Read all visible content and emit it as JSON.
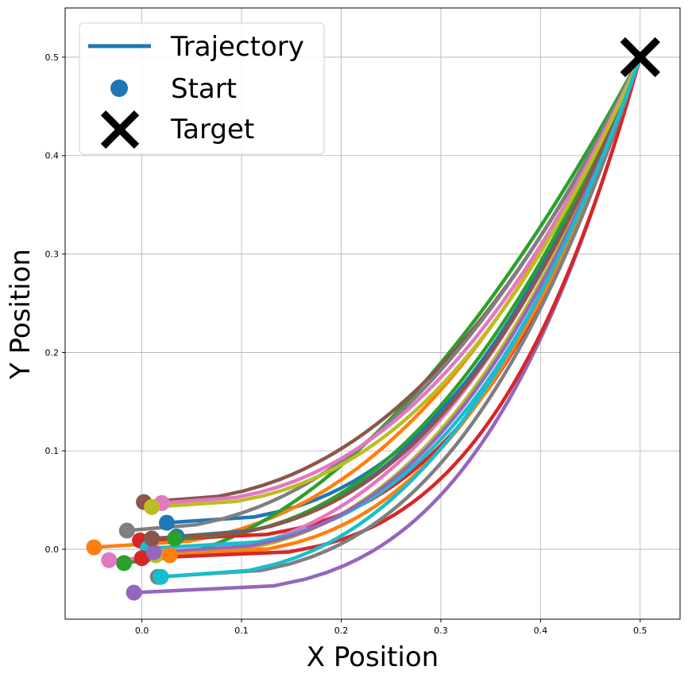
{
  "chart_data": {
    "type": "line",
    "title": "",
    "xlabel": "X Position",
    "ylabel": "Y Position",
    "xlim": [
      -0.077,
      0.54
    ],
    "ylim": [
      -0.071,
      0.55
    ],
    "xticks": [
      0.0,
      0.1,
      0.2,
      0.3,
      0.4,
      0.5
    ],
    "yticks": [
      0.0,
      0.1,
      0.2,
      0.3,
      0.4,
      0.5
    ],
    "xtick_labels": [
      "0.0",
      "0.1",
      "0.2",
      "0.3",
      "0.4",
      "0.5"
    ],
    "ytick_labels": [
      "0.0",
      "0.1",
      "0.2",
      "0.3",
      "0.4",
      "0.5"
    ],
    "grid": true,
    "legend": {
      "placement": "top-left",
      "entries": [
        {
          "label": "Trajectory",
          "kind": "line",
          "color": "#1f77b4"
        },
        {
          "label": "Start",
          "kind": "marker-circle",
          "color": "#1f77b4"
        },
        {
          "label": "Target",
          "kind": "marker-x",
          "color": "#000000"
        }
      ]
    },
    "target": {
      "x": 0.5,
      "y": 0.5
    },
    "trajectories": [
      {
        "start": [
          0.025,
          0.027
        ],
        "color": "#1f77b4",
        "shape": 2.6
      },
      {
        "start": [
          -0.048,
          0.002
        ],
        "color": "#ff7f0e",
        "shape": 2.5
      },
      {
        "start": [
          -0.018,
          -0.014
        ],
        "color": "#2ca02c",
        "shape": 1.9
      },
      {
        "start": [
          -0.002,
          0.009
        ],
        "color": "#d62728",
        "shape": 3.2
      },
      {
        "start": [
          -0.008,
          -0.044
        ],
        "color": "#9467bd",
        "shape": 3.4
      },
      {
        "start": [
          0.002,
          0.048
        ],
        "color": "#8c564b",
        "shape": 2.3
      },
      {
        "start": [
          -0.033,
          -0.011
        ],
        "color": "#e377c2",
        "shape": 2.7
      },
      {
        "start": [
          -0.015,
          0.019
        ],
        "color": "#7f7f7f",
        "shape": 2.2
      },
      {
        "start": [
          0.014,
          -0.006
        ],
        "color": "#bcbd22",
        "shape": 2.6
      },
      {
        "start": [
          0.006,
          0.001
        ],
        "color": "#17becf",
        "shape": 2.9
      },
      {
        "start": [
          0.035,
          0.013
        ],
        "color": "#1f77b4",
        "shape": 2.4
      },
      {
        "start": [
          0.028,
          -0.006
        ],
        "color": "#ff7f0e",
        "shape": 2.8
      },
      {
        "start": [
          0.033,
          0.011
        ],
        "color": "#2ca02c",
        "shape": 2.3
      },
      {
        "start": [
          0.0,
          -0.009
        ],
        "color": "#d62728",
        "shape": 3.6
      },
      {
        "start": [
          0.012,
          -0.003
        ],
        "color": "#9467bd",
        "shape": 2.7
      },
      {
        "start": [
          0.01,
          0.011
        ],
        "color": "#8c564b",
        "shape": 2.6
      },
      {
        "start": [
          0.02,
          0.047
        ],
        "color": "#e377c2",
        "shape": 2.35
      },
      {
        "start": [
          0.016,
          -0.028
        ],
        "color": "#7f7f7f",
        "shape": 2.85
      },
      {
        "start": [
          0.01,
          0.043
        ],
        "color": "#bcbd22",
        "shape": 2.5
      },
      {
        "start": [
          0.019,
          -0.028
        ],
        "color": "#17becf",
        "shape": 2.6
      }
    ]
  }
}
